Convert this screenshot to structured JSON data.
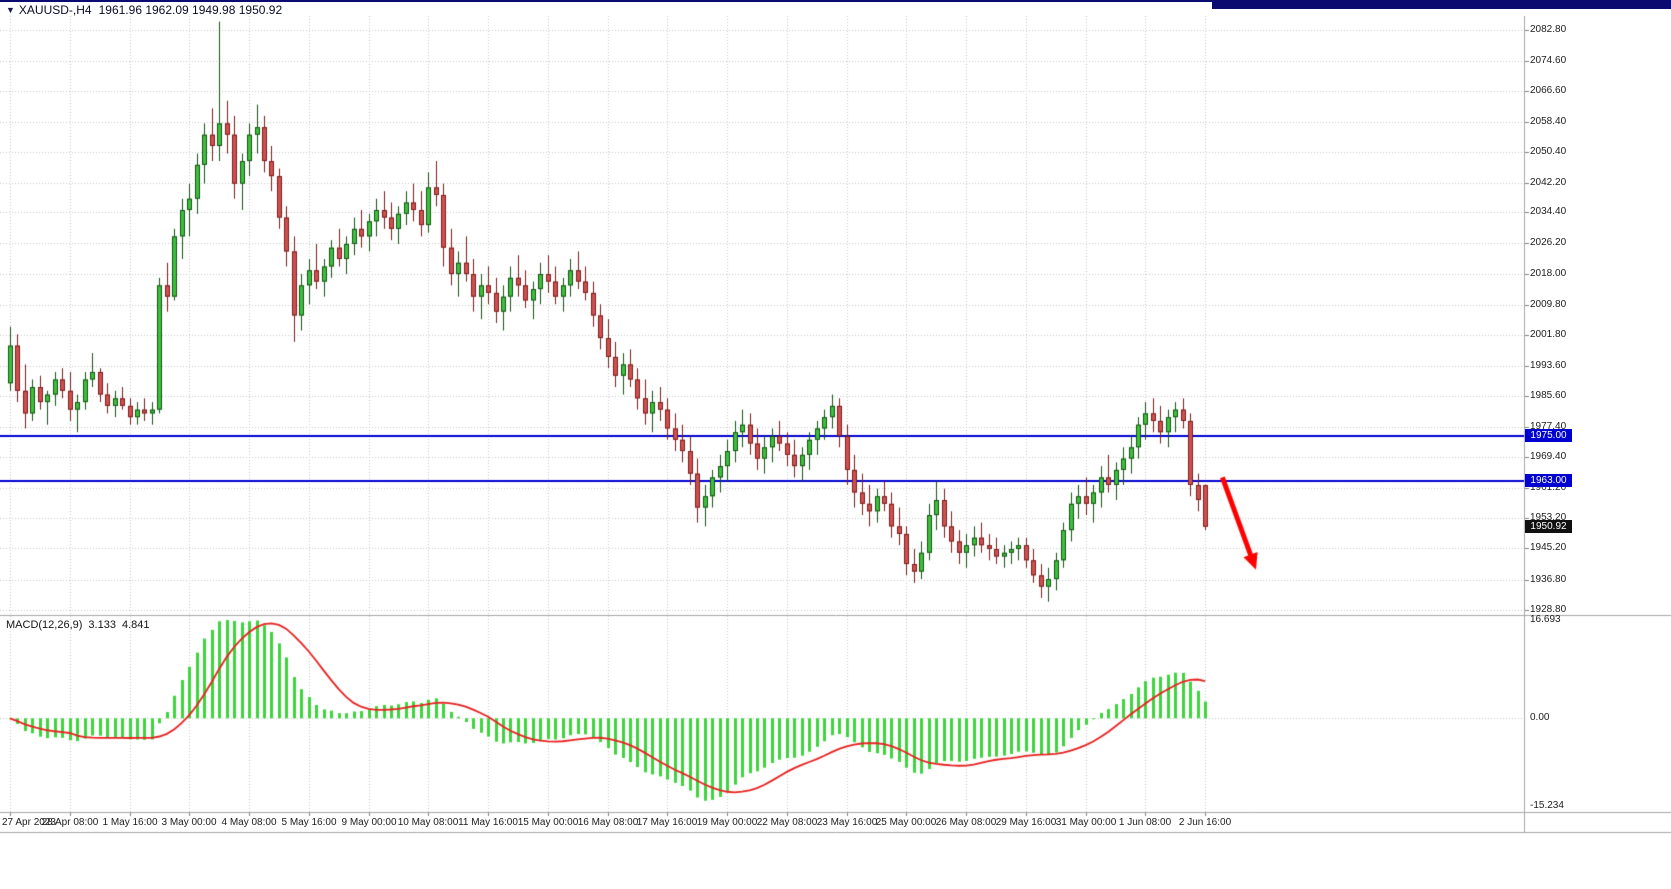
{
  "header": {
    "symbol_with_timeframe": "XAUUSD-,H4",
    "ohlc": "1961.96 1962.09 1949.98 1950.92"
  },
  "macd_panel": {
    "label": "MACD(12,26,9)",
    "main_value": "3.133",
    "signal_value": "4.841",
    "scale_max": "16.693",
    "scale_zero": "0.00",
    "scale_min": "-15.234"
  },
  "colors": {
    "grid": "#c9c9c9",
    "axis_tick": "#808080",
    "separator": "#a6a6a6",
    "bull_fill": "#3cc13c",
    "bull_edge": "#145214",
    "bear_fill": "#d05050",
    "bear_edge": "#7a1c1c",
    "macd_hist": "#3ed43e",
    "macd_signal": "#e82020",
    "hline_blue": "#0000d0",
    "arrow_red": "#ff0000",
    "top_strip": "#0a0a70"
  },
  "chart_data": {
    "type": "candlestick",
    "title": "XAUUSD- H4 with MACD(12,26,9)",
    "symbol": "XAUUSD-",
    "timeframe": "H4",
    "last_bar": {
      "open": 1961.96,
      "high": 1962.09,
      "low": 1949.98,
      "close": 1950.92
    },
    "y_range": [
      1928.8,
      2082.8
    ],
    "y_ticks": [
      "2082.80",
      "2074.60",
      "2066.60",
      "2058.40",
      "2050.40",
      "2042.20",
      "2034.40",
      "2026.20",
      "2018.00",
      "2009.80",
      "2001.80",
      "1993.60",
      "1985.60",
      "1977.40",
      "1969.40",
      "1961.20",
      "1953.20",
      "1945.20",
      "1936.80",
      "1928.80"
    ],
    "label_step_bars": 8,
    "x_labels": [
      "27 Apr 2023",
      "28 Apr 08:00",
      "1 May 16:00",
      "3 May 00:00",
      "4 May 08:00",
      "5 May 16:00",
      "9 May 00:00",
      "10 May 08:00",
      "11 May 16:00",
      "15 May 00:00",
      "16 May 08:00",
      "17 May 16:00",
      "19 May 00:00",
      "22 May 08:00",
      "23 May 16:00",
      "25 May 00:00",
      "26 May 08:00",
      "29 May 16:00",
      "31 May 00:00",
      "1 Jun 08:00",
      "2 Jun 16:00"
    ],
    "hlines": [
      {
        "price": 1975.0,
        "label": "1975.00",
        "color": "#0000d0"
      },
      {
        "price": 1963.0,
        "label": "1963.00",
        "color": "#0000d0"
      }
    ],
    "current_price": {
      "value": 1950.92,
      "label": "1950.92"
    },
    "arrow": {
      "from_bar": 162.3,
      "from_price": 1964.0,
      "to_bar": 166.8,
      "to_price": 1939.5,
      "color": "#ff0000"
    },
    "macd": {
      "fast": 12,
      "slow": 26,
      "signal": 9,
      "current_main": 3.133,
      "current_signal": 4.841,
      "scale": {
        "max": 16.693,
        "zero": 0.0,
        "min": -15.234
      }
    },
    "candles": [
      [
        1989,
        2004,
        1987,
        1999
      ],
      [
        1999,
        2002,
        1984,
        1987
      ],
      [
        1987,
        1994,
        1977,
        1981
      ],
      [
        1981,
        1990,
        1979,
        1988
      ],
      [
        1988,
        1991,
        1982,
        1984
      ],
      [
        1984,
        1987,
        1978,
        1986
      ],
      [
        1986,
        1992,
        1983,
        1990
      ],
      [
        1990,
        1993,
        1985,
        1987
      ],
      [
        1987,
        1992,
        1979,
        1982
      ],
      [
        1982,
        1986,
        1976,
        1984
      ],
      [
        1984,
        1992,
        1982,
        1990
      ],
      [
        1990,
        1997,
        1988,
        1992
      ],
      [
        1992,
        1993,
        1984,
        1986
      ],
      [
        1986,
        1989,
        1981,
        1983
      ],
      [
        1983,
        1987,
        1980,
        1985
      ],
      [
        1985,
        1988,
        1982,
        1983
      ],
      [
        1983,
        1985,
        1978,
        1980
      ],
      [
        1980,
        1984,
        1978,
        1982
      ],
      [
        1982,
        1985,
        1979,
        1981
      ],
      [
        1981,
        1984,
        1978,
        1982
      ],
      [
        1982,
        2017,
        1981,
        2015
      ],
      [
        2015,
        2021,
        2008,
        2012
      ],
      [
        2012,
        2030,
        2011,
        2028
      ],
      [
        2028,
        2038,
        2022,
        2035
      ],
      [
        2035,
        2042,
        2028,
        2038
      ],
      [
        2038,
        2050,
        2034,
        2047
      ],
      [
        2047,
        2058,
        2042,
        2055
      ],
      [
        2055,
        2062,
        2048,
        2052
      ],
      [
        2052,
        2085,
        2048,
        2058
      ],
      [
        2058,
        2064,
        2050,
        2055
      ],
      [
        2055,
        2060,
        2038,
        2042
      ],
      [
        2042,
        2050,
        2035,
        2048
      ],
      [
        2048,
        2058,
        2044,
        2055
      ],
      [
        2055,
        2063,
        2050,
        2057
      ],
      [
        2057,
        2060,
        2045,
        2048
      ],
      [
        2048,
        2052,
        2040,
        2044
      ],
      [
        2044,
        2046,
        2030,
        2033
      ],
      [
        2033,
        2036,
        2020,
        2024
      ],
      [
        2024,
        2028,
        2000,
        2007
      ],
      [
        2007,
        2018,
        2003,
        2015
      ],
      [
        2015,
        2022,
        2010,
        2019
      ],
      [
        2019,
        2026,
        2014,
        2016
      ],
      [
        2016,
        2022,
        2012,
        2020
      ],
      [
        2020,
        2027,
        2017,
        2025
      ],
      [
        2025,
        2030,
        2020,
        2022
      ],
      [
        2022,
        2028,
        2018,
        2026
      ],
      [
        2026,
        2033,
        2023,
        2030
      ],
      [
        2030,
        2035,
        2025,
        2028
      ],
      [
        2028,
        2034,
        2024,
        2032
      ],
      [
        2032,
        2038,
        2028,
        2035
      ],
      [
        2035,
        2040,
        2030,
        2033
      ],
      [
        2033,
        2037,
        2027,
        2030
      ],
      [
        2030,
        2036,
        2026,
        2034
      ],
      [
        2034,
        2040,
        2031,
        2037
      ],
      [
        2037,
        2042,
        2032,
        2035
      ],
      [
        2035,
        2040,
        2028,
        2031
      ],
      [
        2031,
        2045,
        2029,
        2041
      ],
      [
        2041,
        2048,
        2036,
        2039
      ],
      [
        2039,
        2042,
        2020,
        2025
      ],
      [
        2025,
        2030,
        2015,
        2018
      ],
      [
        2018,
        2024,
        2012,
        2021
      ],
      [
        2021,
        2028,
        2016,
        2018
      ],
      [
        2018,
        2022,
        2008,
        2012
      ],
      [
        2012,
        2018,
        2006,
        2015
      ],
      [
        2015,
        2020,
        2010,
        2013
      ],
      [
        2013,
        2017,
        2005,
        2008
      ],
      [
        2008,
        2015,
        2003,
        2012
      ],
      [
        2012,
        2020,
        2008,
        2017
      ],
      [
        2017,
        2023,
        2012,
        2015
      ],
      [
        2015,
        2019,
        2009,
        2011
      ],
      [
        2011,
        2016,
        2006,
        2014
      ],
      [
        2014,
        2021,
        2010,
        2018
      ],
      [
        2018,
        2023,
        2013,
        2016
      ],
      [
        2016,
        2020,
        2010,
        2012
      ],
      [
        2012,
        2017,
        2008,
        2015
      ],
      [
        2015,
        2022,
        2012,
        2019
      ],
      [
        2019,
        2024,
        2014,
        2016
      ],
      [
        2016,
        2020,
        2011,
        2013
      ],
      [
        2013,
        2016,
        2004,
        2007
      ],
      [
        2007,
        2010,
        1998,
        2001
      ],
      [
        2001,
        2006,
        1993,
        1996
      ],
      [
        1996,
        2000,
        1988,
        1991
      ],
      [
        1991,
        1997,
        1986,
        1994
      ],
      [
        1994,
        1998,
        1988,
        1990
      ],
      [
        1990,
        1993,
        1982,
        1985
      ],
      [
        1985,
        1990,
        1978,
        1981
      ],
      [
        1981,
        1987,
        1976,
        1984
      ],
      [
        1984,
        1988,
        1979,
        1982
      ],
      [
        1982,
        1985,
        1974,
        1977
      ],
      [
        1977,
        1981,
        1971,
        1974
      ],
      [
        1974,
        1978,
        1968,
        1971
      ],
      [
        1971,
        1975,
        1962,
        1965
      ],
      [
        1965,
        1969,
        1952,
        1956
      ],
      [
        1956,
        1962,
        1951,
        1959
      ],
      [
        1959,
        1966,
        1956,
        1964
      ],
      [
        1964,
        1970,
        1960,
        1967
      ],
      [
        1967,
        1974,
        1963,
        1971
      ],
      [
        1971,
        1979,
        1968,
        1976
      ],
      [
        1976,
        1982,
        1972,
        1978
      ],
      [
        1978,
        1981,
        1970,
        1973
      ],
      [
        1973,
        1977,
        1966,
        1969
      ],
      [
        1969,
        1975,
        1965,
        1972
      ],
      [
        1972,
        1977,
        1968,
        1975
      ],
      [
        1975,
        1979,
        1971,
        1973
      ],
      [
        1973,
        1976,
        1967,
        1970
      ],
      [
        1970,
        1974,
        1964,
        1967
      ],
      [
        1967,
        1972,
        1963,
        1970
      ],
      [
        1970,
        1976,
        1966,
        1974
      ],
      [
        1974,
        1979,
        1970,
        1977
      ],
      [
        1977,
        1982,
        1974,
        1980
      ],
      [
        1980,
        1986,
        1977,
        1983
      ],
      [
        1983,
        1985,
        1972,
        1975
      ],
      [
        1975,
        1978,
        1962,
        1966
      ],
      [
        1966,
        1970,
        1956,
        1960
      ],
      [
        1960,
        1965,
        1954,
        1957
      ],
      [
        1957,
        1962,
        1951,
        1955
      ],
      [
        1955,
        1961,
        1952,
        1959
      ],
      [
        1959,
        1963,
        1955,
        1957
      ],
      [
        1957,
        1960,
        1948,
        1951
      ],
      [
        1951,
        1956,
        1946,
        1949
      ],
      [
        1949,
        1951,
        1938,
        1941
      ],
      [
        1941,
        1945,
        1936,
        1939
      ],
      [
        1939,
        1947,
        1937,
        1944
      ],
      [
        1944,
        1957,
        1942,
        1954
      ],
      [
        1954,
        1963,
        1950,
        1958
      ],
      [
        1958,
        1961,
        1948,
        1951
      ],
      [
        1951,
        1955,
        1944,
        1947
      ],
      [
        1947,
        1950,
        1941,
        1944
      ],
      [
        1944,
        1949,
        1940,
        1946
      ],
      [
        1946,
        1951,
        1943,
        1948
      ],
      [
        1948,
        1952,
        1944,
        1946
      ],
      [
        1946,
        1949,
        1942,
        1945
      ],
      [
        1945,
        1948,
        1941,
        1943
      ],
      [
        1943,
        1946,
        1940,
        1944
      ],
      [
        1944,
        1947,
        1941,
        1945
      ],
      [
        1945,
        1948,
        1942,
        1946
      ],
      [
        1946,
        1948,
        1940,
        1942
      ],
      [
        1942,
        1945,
        1936,
        1938
      ],
      [
        1938,
        1941,
        1932,
        1935
      ],
      [
        1935,
        1940,
        1931,
        1937
      ],
      [
        1937,
        1944,
        1934,
        1942
      ],
      [
        1942,
        1952,
        1940,
        1950
      ],
      [
        1950,
        1960,
        1947,
        1957
      ],
      [
        1957,
        1962,
        1953,
        1959
      ],
      [
        1959,
        1964,
        1954,
        1957
      ],
      [
        1957,
        1962,
        1952,
        1960
      ],
      [
        1960,
        1967,
        1956,
        1964
      ],
      [
        1964,
        1970,
        1960,
        1962
      ],
      [
        1962,
        1968,
        1958,
        1966
      ],
      [
        1966,
        1972,
        1962,
        1969
      ],
      [
        1969,
        1975,
        1965,
        1972
      ],
      [
        1972,
        1980,
        1969,
        1978
      ],
      [
        1978,
        1984,
        1974,
        1981
      ],
      [
        1981,
        1985,
        1976,
        1979
      ],
      [
        1979,
        1983,
        1973,
        1976
      ],
      [
        1976,
        1982,
        1972,
        1980
      ],
      [
        1980,
        1984,
        1976,
        1982
      ],
      [
        1982,
        1985,
        1977,
        1979
      ],
      [
        1979,
        1981,
        1959,
        1962
      ],
      [
        1962,
        1965,
        1955,
        1958
      ],
      [
        1961.96,
        1962.09,
        1949.98,
        1950.92
      ]
    ]
  }
}
